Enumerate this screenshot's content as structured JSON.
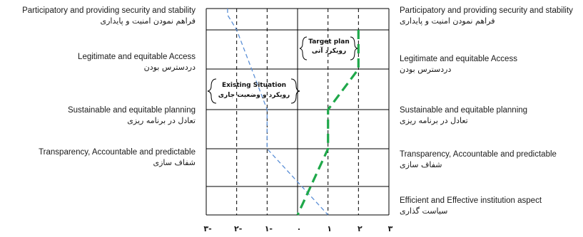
{
  "chart_data": {
    "type": "line",
    "xlim": [
      -3,
      3
    ],
    "x_ticks": [
      -3,
      -2,
      -1,
      0,
      1,
      2,
      3
    ],
    "x_tick_labels": [
      "۳-",
      "۲-",
      "۱-",
      "۰",
      "۱",
      "۲",
      "۳"
    ],
    "categories": [
      {
        "en": "Participatory and providing security and stability",
        "fa": "فراهم نمودن امنیت و پایداری"
      },
      {
        "en": "Legitimate and equitable Access",
        "fa": "دردسترس بودن"
      },
      {
        "en": "Sustainable and equitable planning",
        "fa": "تعادل در برنامه ریزی"
      },
      {
        "en": "Transparency, Accountable and predictable",
        "fa": "شفاف سازی"
      },
      {
        "en": "Efficient and Effective institution aspect",
        "fa": "سیاست گذاری"
      }
    ],
    "series": [
      {
        "name": "Existing Situation",
        "name_fa": "رویکرد و وضعیت جاری",
        "color": "#5b8fd6",
        "style": "dashed-thin",
        "points": [
          [
            -2.3,
            6.0
          ],
          [
            -2.3,
            5.7
          ],
          [
            -2.0,
            5.0
          ],
          [
            -1.0,
            3.0
          ],
          [
            -1.0,
            2.0
          ],
          [
            1.0,
            0.0
          ]
        ]
      },
      {
        "name": "Target plan",
        "name_fa": "رویکرد آتی",
        "color": "#1fa84a",
        "style": "dashed-thick",
        "points": [
          [
            2.0,
            5.0
          ],
          [
            2.0,
            4.0
          ],
          [
            1.0,
            3.0
          ],
          [
            1.0,
            2.0
          ],
          [
            0.0,
            0.0
          ]
        ]
      }
    ],
    "annotations": [
      {
        "series": "Target plan",
        "text": "Target plan",
        "text_fa": "رویکرد آتی"
      },
      {
        "series": "Existing Situation",
        "text": "Existing Situation",
        "text_fa": "رویکرد و وضعیت جاری"
      }
    ],
    "colors": {
      "grid": "#000000",
      "line": "#000000"
    }
  }
}
